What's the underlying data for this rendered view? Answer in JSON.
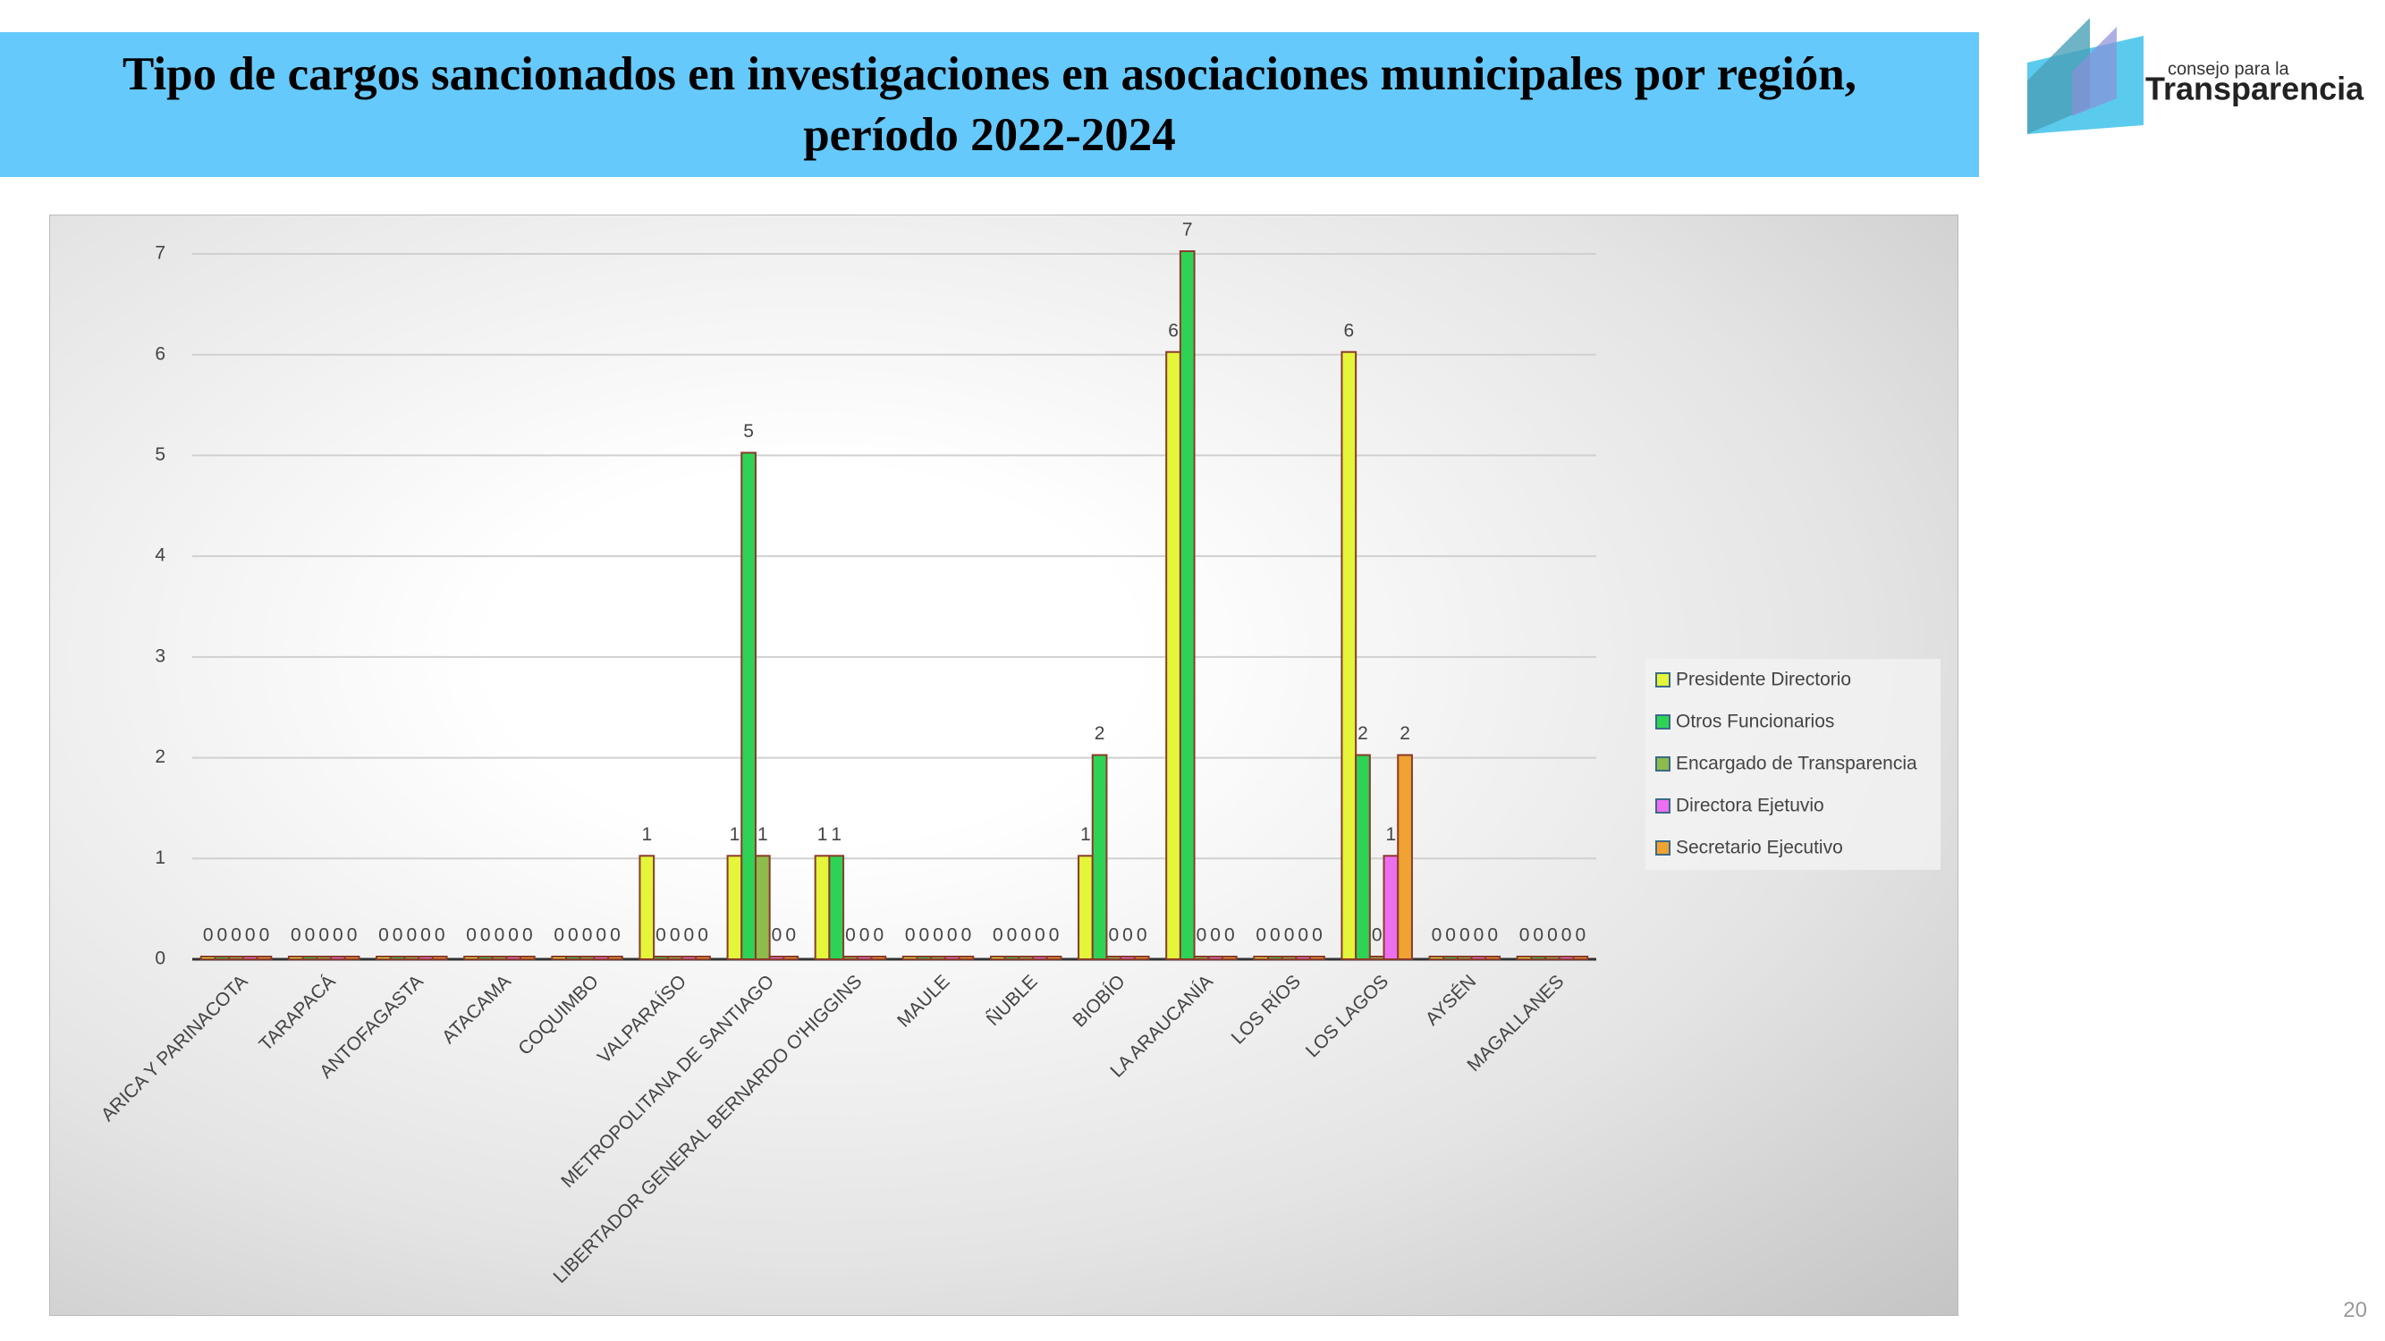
{
  "chart_data": {
    "type": "bar",
    "title": "Tipo de cargos sancionados en investigaciones en asociaciones municipales por región, período 2022-2024",
    "categories": [
      "ARICA Y PARINACOTA",
      "TARAPACÁ",
      "ANTOFAGASTA",
      "ATACAMA",
      "COQUIMBO",
      "VALPARAÍSO",
      "METROPOLITANA DE SANTIAGO",
      "LIBERTADOR GENERAL BERNARDO O'HIGGINS",
      "MAULE",
      "ÑUBLE",
      "BIOBÍO",
      "LA ARAUCANÍA",
      "LOS RÍOS",
      "LOS LAGOS",
      "AYSÉN",
      "MAGALLANES"
    ],
    "series": [
      {
        "name": "Presidente Directorio",
        "color": "#e4f53a",
        "values": [
          0,
          0,
          0,
          0,
          0,
          1,
          1,
          1,
          0,
          0,
          1,
          6,
          0,
          6,
          0,
          0
        ]
      },
      {
        "name": "Otros Funcionarios",
        "color": "#2ed356",
        "values": [
          0,
          0,
          0,
          0,
          0,
          0,
          5,
          1,
          0,
          0,
          2,
          7,
          0,
          2,
          0,
          0
        ]
      },
      {
        "name": "Encargado de Transparencia",
        "color": "#8dbb4c",
        "values": [
          0,
          0,
          0,
          0,
          0,
          0,
          1,
          0,
          0,
          0,
          0,
          0,
          0,
          0,
          0,
          0
        ]
      },
      {
        "name": "Directora Ejetuvio",
        "color": "#ee6ef0",
        "values": [
          0,
          0,
          0,
          0,
          0,
          0,
          0,
          0,
          0,
          0,
          0,
          0,
          0,
          1,
          0,
          0
        ]
      },
      {
        "name": "Secretario Ejecutivo",
        "color": "#f0a232",
        "values": [
          0,
          0,
          0,
          0,
          0,
          0,
          0,
          0,
          0,
          0,
          0,
          0,
          0,
          2,
          0,
          0
        ]
      }
    ],
    "ylim": [
      0,
      7
    ],
    "yticks": [
      0,
      1,
      2,
      3,
      4,
      5,
      6,
      7
    ],
    "grid": true,
    "legend": "right"
  },
  "logo": {
    "line1": "consejo para la",
    "line2": "Transparencia"
  },
  "page_number": "20"
}
